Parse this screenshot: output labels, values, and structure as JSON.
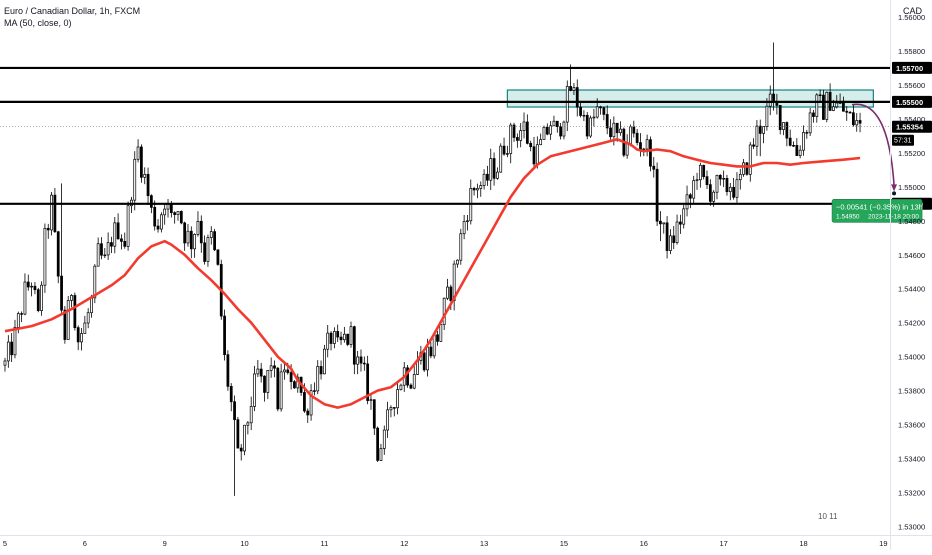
{
  "header": {
    "title": "Euro / Canadian Dollar, 1h, FXCM",
    "indicator": "MA (50, close, 0)",
    "currency": "CAD"
  },
  "colors": {
    "up_candle": "#ffffff",
    "down_candle": "#000000",
    "candle_outline": "#000000",
    "ma_line": "#f23b2e",
    "zone_fill": "#b2dfdb",
    "zone_border": "#138484",
    "projection": "#7b2d6b",
    "label_green": "#26a65b"
  },
  "watermark": "10 11",
  "chart_data": {
    "type": "candlestick",
    "symbol": "EURCAD",
    "timeframe": "1h",
    "ylim": [
      1.5295,
      1.561
    ],
    "y_ticks": [
      "1.56000",
      "1.55800",
      "1.55600",
      "1.55400",
      "1.55200",
      "1.55000",
      "1.54800",
      "1.54600",
      "1.54400",
      "1.54200",
      "1.54000",
      "1.53800",
      "1.53600",
      "1.53400",
      "1.53200",
      "1.53000"
    ],
    "x_ticks": [
      {
        "label": "5",
        "x": 0
      },
      {
        "label": "6",
        "x": 24
      },
      {
        "label": "9",
        "x": 48
      },
      {
        "label": "10",
        "x": 72
      },
      {
        "label": "11",
        "x": 96
      },
      {
        "label": "12",
        "x": 120
      },
      {
        "label": "13",
        "x": 144
      },
      {
        "label": "15",
        "x": 168
      },
      {
        "label": "16",
        "x": 192
      },
      {
        "label": "17",
        "x": 216
      },
      {
        "label": "18",
        "x": 240
      },
      {
        "label": "19",
        "x": 264
      }
    ],
    "xlim": [
      -1.5,
      266
    ],
    "anchors": [
      [
        0,
        1.5395
      ],
      [
        3,
        1.5412
      ],
      [
        6,
        1.5438
      ],
      [
        8,
        1.5445
      ],
      [
        10,
        1.5422
      ],
      [
        12,
        1.5468
      ],
      [
        14,
        1.549
      ],
      [
        16,
        1.5446
      ],
      [
        18,
        1.5412
      ],
      [
        20,
        1.544
      ],
      [
        22,
        1.541
      ],
      [
        24,
        1.5418
      ],
      [
        26,
        1.5432
      ],
      [
        28,
        1.546
      ],
      [
        30,
        1.5455
      ],
      [
        32,
        1.547
      ],
      [
        34,
        1.5476
      ],
      [
        36,
        1.5468
      ],
      [
        38,
        1.55
      ],
      [
        40,
        1.5522
      ],
      [
        42,
        1.5505
      ],
      [
        44,
        1.5485
      ],
      [
        46,
        1.5478
      ],
      [
        48,
        1.5493
      ],
      [
        50,
        1.548
      ],
      [
        52,
        1.5488
      ],
      [
        54,
        1.5473
      ],
      [
        56,
        1.5468
      ],
      [
        58,
        1.5482
      ],
      [
        60,
        1.546
      ],
      [
        62,
        1.547
      ],
      [
        64,
        1.545
      ],
      [
        66,
        1.5398
      ],
      [
        68,
        1.5372
      ],
      [
        70,
        1.534
      ],
      [
        72,
        1.5352
      ],
      [
        74,
        1.5374
      ],
      [
        76,
        1.539
      ],
      [
        78,
        1.5378
      ],
      [
        80,
        1.5398
      ],
      [
        82,
        1.5374
      ],
      [
        84,
        1.5395
      ],
      [
        86,
        1.538
      ],
      [
        88,
        1.5392
      ],
      [
        90,
        1.5366
      ],
      [
        92,
        1.538
      ],
      [
        94,
        1.5392
      ],
      [
        96,
        1.54
      ],
      [
        98,
        1.5412
      ],
      [
        100,
        1.5404
      ],
      [
        102,
        1.541
      ],
      [
        104,
        1.5412
      ],
      [
        106,
        1.5395
      ],
      [
        108,
        1.5388
      ],
      [
        110,
        1.5372
      ],
      [
        112,
        1.5345
      ],
      [
        114,
        1.535
      ],
      [
        116,
        1.5372
      ],
      [
        118,
        1.5382
      ],
      [
        120,
        1.5392
      ],
      [
        122,
        1.5388
      ],
      [
        124,
        1.5398
      ],
      [
        126,
        1.54
      ],
      [
        128,
        1.5405
      ],
      [
        130,
        1.5412
      ],
      [
        132,
        1.5428
      ],
      [
        134,
        1.544
      ],
      [
        136,
        1.546
      ],
      [
        138,
        1.548
      ],
      [
        140,
        1.5495
      ],
      [
        142,
        1.5502
      ],
      [
        144,
        1.55
      ],
      [
        146,
        1.551
      ],
      [
        148,
        1.5512
      ],
      [
        150,
        1.5525
      ],
      [
        152,
        1.553
      ],
      [
        154,
        1.5532
      ],
      [
        156,
        1.5535
      ],
      [
        158,
        1.5522
      ],
      [
        160,
        1.552
      ],
      [
        162,
        1.5528
      ],
      [
        164,
        1.5538
      ],
      [
        166,
        1.553
      ],
      [
        168,
        1.5545
      ],
      [
        170,
        1.5558
      ],
      [
        172,
        1.555
      ],
      [
        174,
        1.554
      ],
      [
        176,
        1.5535
      ],
      [
        178,
        1.5545
      ],
      [
        180,
        1.5538
      ],
      [
        182,
        1.5534
      ],
      [
        184,
        1.5528
      ],
      [
        186,
        1.5524
      ],
      [
        188,
        1.5532
      ],
      [
        190,
        1.5527
      ],
      [
        192,
        1.5525
      ],
      [
        194,
        1.552
      ],
      [
        196,
        1.5485
      ],
      [
        198,
        1.5472
      ],
      [
        200,
        1.5465
      ],
      [
        202,
        1.5476
      ],
      [
        204,
        1.5485
      ],
      [
        206,
        1.5493
      ],
      [
        208,
        1.551
      ],
      [
        210,
        1.5502
      ],
      [
        212,
        1.5498
      ],
      [
        214,
        1.55
      ],
      [
        216,
        1.5498
      ],
      [
        218,
        1.5502
      ],
      [
        220,
        1.5498
      ],
      [
        222,
        1.5508
      ],
      [
        224,
        1.552
      ],
      [
        226,
        1.5532
      ],
      [
        228,
        1.554
      ],
      [
        230,
        1.5548
      ],
      [
        232,
        1.5545
      ],
      [
        234,
        1.5538
      ],
      [
        236,
        1.5528
      ],
      [
        238,
        1.552
      ],
      [
        240,
        1.5532
      ],
      [
        242,
        1.5542
      ],
      [
        244,
        1.5548
      ],
      [
        246,
        1.5546
      ],
      [
        248,
        1.5552
      ],
      [
        250,
        1.5548
      ],
      [
        252,
        1.5545
      ],
      [
        254,
        1.554
      ],
      [
        256,
        1.5538
      ],
      [
        257,
        1.5535
      ]
    ],
    "ma_path": [
      [
        0,
        1.5415
      ],
      [
        8,
        1.5418
      ],
      [
        14,
        1.5422
      ],
      [
        20,
        1.5428
      ],
      [
        26,
        1.5435
      ],
      [
        32,
        1.5442
      ],
      [
        36,
        1.5448
      ],
      [
        40,
        1.5458
      ],
      [
        44,
        1.5465
      ],
      [
        48,
        1.5468
      ],
      [
        50,
        1.5466
      ],
      [
        54,
        1.546
      ],
      [
        58,
        1.5452
      ],
      [
        62,
        1.5445
      ],
      [
        66,
        1.5437
      ],
      [
        70,
        1.5428
      ],
      [
        74,
        1.542
      ],
      [
        78,
        1.541
      ],
      [
        82,
        1.54
      ],
      [
        86,
        1.5393
      ],
      [
        88,
        1.5386
      ],
      [
        92,
        1.5377
      ],
      [
        96,
        1.5372
      ],
      [
        100,
        1.537
      ],
      [
        104,
        1.5372
      ],
      [
        108,
        1.5376
      ],
      [
        112,
        1.538
      ],
      [
        116,
        1.5382
      ],
      [
        120,
        1.5388
      ],
      [
        124,
        1.5398
      ],
      [
        128,
        1.541
      ],
      [
        132,
        1.5424
      ],
      [
        136,
        1.5438
      ],
      [
        140,
        1.5452
      ],
      [
        144,
        1.5466
      ],
      [
        148,
        1.548
      ],
      [
        152,
        1.5494
      ],
      [
        156,
        1.5505
      ],
      [
        160,
        1.5513
      ],
      [
        164,
        1.5518
      ],
      [
        168,
        1.552
      ],
      [
        172,
        1.5522
      ],
      [
        176,
        1.5524
      ],
      [
        180,
        1.5526
      ],
      [
        184,
        1.5528
      ],
      [
        188,
        1.5525
      ],
      [
        190,
        1.5522
      ],
      [
        192,
        1.5521
      ],
      [
        196,
        1.5522
      ],
      [
        200,
        1.5521
      ],
      [
        204,
        1.5518
      ],
      [
        208,
        1.5516
      ],
      [
        212,
        1.5514
      ],
      [
        216,
        1.5513
      ],
      [
        220,
        1.5512
      ],
      [
        224,
        1.5512
      ],
      [
        228,
        1.5514
      ],
      [
        232,
        1.5514
      ],
      [
        236,
        1.5513
      ],
      [
        240,
        1.5514
      ],
      [
        246,
        1.5515
      ],
      [
        252,
        1.5516
      ],
      [
        257,
        1.5517
      ]
    ],
    "spikes": [
      {
        "x": 17,
        "high": 1.5502
      },
      {
        "x": 40,
        "high": 1.5528
      },
      {
        "x": 69,
        "low": 1.5318
      },
      {
        "x": 112,
        "low": 1.5338
      },
      {
        "x": 170,
        "high": 1.5572
      },
      {
        "x": 197,
        "low": 1.5468
      },
      {
        "x": 231,
        "high": 1.5585
      },
      {
        "x": 227,
        "low": 1.5518
      }
    ],
    "horizontal_levels": [
      {
        "price": 1.557,
        "label": "1.55700"
      },
      {
        "price": 1.555,
        "label": "1.55500"
      },
      {
        "price": 1.549,
        "label": "1.54900"
      }
    ],
    "zone": {
      "x0": 151,
      "x1": 261,
      "top": 1.5557,
      "bottom": 1.5547
    },
    "current_price": {
      "label": "1.55354",
      "countdown": "57:31",
      "price": 1.55354
    },
    "projection": {
      "target_price": 1.5495,
      "label_line1": "−0.00541 (−0.35%) in 13h",
      "label_line2_price": "1.54950",
      "label_line2_time": "2023-11-18  20:00"
    }
  }
}
